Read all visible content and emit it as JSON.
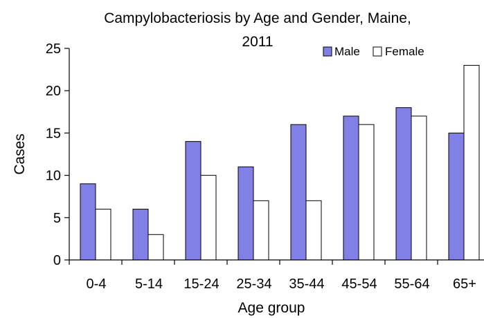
{
  "chart_data": {
    "type": "bar",
    "title_line1": "Campylobacteriosis by Age and Gender, Maine,",
    "title_line2": "2011",
    "xlabel": "Age group",
    "ylabel": "Cases",
    "categories": [
      "0-4",
      "5-14",
      "15-24",
      "25-34",
      "35-44",
      "45-54",
      "55-64",
      "65+"
    ],
    "series": [
      {
        "name": "Male",
        "color": "#8080e6",
        "values": [
          9,
          6,
          14,
          11,
          16,
          17,
          18,
          15
        ]
      },
      {
        "name": "Female",
        "color": "#ffffff",
        "values": [
          6,
          3,
          10,
          7,
          7,
          16,
          17,
          23
        ]
      }
    ],
    "ylim": [
      0,
      25
    ],
    "yticks": [
      0,
      5,
      10,
      15,
      20,
      25
    ],
    "grid": false,
    "legend_position": "top-right"
  }
}
